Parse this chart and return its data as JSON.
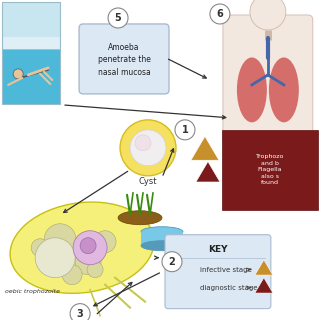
{
  "bg_color": "#ffffff",
  "pool_sky_color": "#c8e6f0",
  "pool_water_color": "#4db8d8",
  "pool_wall_color": "#e8f4f8",
  "step5_label": "5",
  "step5_text": "Amoeba\npenetrate the\nnasal mucosa",
  "step5_box_bg": "#dde8f5",
  "step5_box_border": "#aabbd0",
  "step6_label": "6",
  "dark_red_box_text": "Trophozo\nand b\nFlagella\nalso s\nfound",
  "dark_red_color": "#7a1a1a",
  "cyst_outer_color": "#f5e060",
  "cyst_inner_color": "#f0eeee",
  "cyst_label": "Cyst",
  "step1_label": "1",
  "step2_label": "2",
  "step3_label": "3",
  "triangle_gold": "#c8902a",
  "triangle_darkred": "#7a1a1a",
  "trophozoite_color": "#f5f07a",
  "trophozoite_border": "#c8c010",
  "label_trophozoite": "oebic trophozoite",
  "key_bg": "#dde8f5",
  "key_border": "#aabbd0",
  "key_title": "KEY",
  "key_infective": "infective stage",
  "key_diagnostic": "diagnostic stage",
  "arrow_color": "#444444",
  "circle_border": "#888888"
}
